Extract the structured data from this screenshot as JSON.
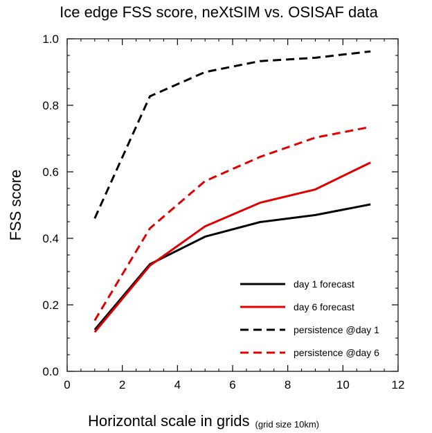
{
  "chart_data": {
    "type": "line",
    "title": "Ice edge FSS score, neXtSIM vs. OSISAF data",
    "xlabel": "Horizontal scale in grids",
    "xlabel_note": "(grid size 10km)",
    "ylabel": "FSS score",
    "xlim": [
      0,
      12
    ],
    "ylim": [
      0,
      1.0
    ],
    "x_ticks": [
      0,
      2,
      4,
      6,
      8,
      10,
      12
    ],
    "x_tick_labels": [
      "0",
      "2",
      "4",
      "6",
      "8",
      "10",
      "12"
    ],
    "y_ticks": [
      0,
      0.2,
      0.4,
      0.6,
      0.8,
      1.0
    ],
    "y_tick_labels": [
      "0.0",
      "0.2",
      "0.4",
      "0.6",
      "0.8",
      "1.0"
    ],
    "grid": false,
    "legend_position": "bottom-right",
    "x": [
      1,
      3,
      5,
      7,
      9,
      11
    ],
    "series": [
      {
        "name": "day 1 forecast",
        "color": "#000000",
        "dashed": false,
        "values": [
          0.125,
          0.322,
          0.405,
          0.449,
          0.47,
          0.502
        ]
      },
      {
        "name": "day 6 forecast",
        "color": "#e00000",
        "dashed": false,
        "values": [
          0.118,
          0.318,
          0.436,
          0.507,
          0.547,
          0.628
        ]
      },
      {
        "name": "persistence @day 1",
        "color": "#000000",
        "dashed": true,
        "values": [
          0.46,
          0.827,
          0.9,
          0.933,
          0.943,
          0.962
        ]
      },
      {
        "name": "persistence @day 6",
        "color": "#e00000",
        "dashed": true,
        "values": [
          0.153,
          0.43,
          0.572,
          0.645,
          0.703,
          0.735
        ]
      }
    ]
  }
}
